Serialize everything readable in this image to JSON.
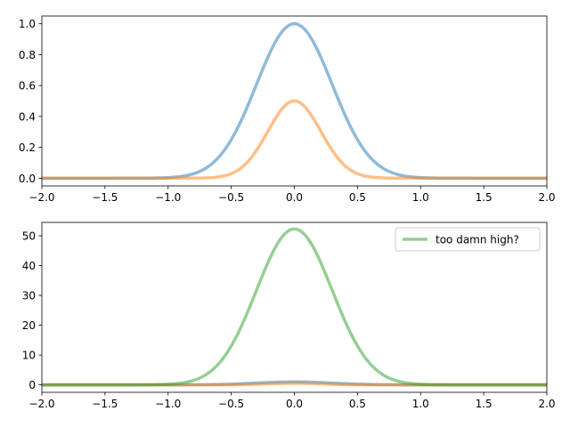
{
  "chart_data": [
    {
      "type": "line",
      "xlim": [
        -2,
        2
      ],
      "ylim": [
        -0.05,
        1.05
      ],
      "xticks": [
        -2.0,
        -1.5,
        -1.0,
        -0.5,
        0.0,
        0.5,
        1.0,
        1.5,
        2.0
      ],
      "xtick_labels": [
        "−2.0",
        "−1.5",
        "−1.0",
        "−0.5",
        "0.0",
        "0.5",
        "1.0",
        "1.5",
        "2.0"
      ],
      "yticks": [
        0.0,
        0.2,
        0.4,
        0.6,
        0.8,
        1.0
      ],
      "ytick_labels": [
        "0.0",
        "0.2",
        "0.4",
        "0.6",
        "0.8",
        "1.0"
      ],
      "grid": false,
      "series": [
        {
          "color": "#1f77b4",
          "alpha": 0.5,
          "amplitude": 1.0,
          "sigma": 0.3,
          "peak": [
            0,
            1.0
          ]
        },
        {
          "color": "#ff7f0e",
          "alpha": 0.5,
          "amplitude": 0.5,
          "sigma": 0.21,
          "peak": [
            0,
            0.5
          ]
        }
      ]
    },
    {
      "type": "line",
      "xlim": [
        -2,
        2
      ],
      "ylim": [
        -2.5,
        54.5
      ],
      "xticks": [
        -2.0,
        -1.5,
        -1.0,
        -0.5,
        0.0,
        0.5,
        1.0,
        1.5,
        2.0
      ],
      "xtick_labels": [
        "−2.0",
        "−1.5",
        "−1.0",
        "−0.5",
        "0.0",
        "0.5",
        "1.0",
        "1.5",
        "2.0"
      ],
      "yticks": [
        0,
        10,
        20,
        30,
        40,
        50
      ],
      "ytick_labels": [
        "0",
        "10",
        "20",
        "30",
        "40",
        "50"
      ],
      "grid": false,
      "legend_placement": "upper right",
      "series": [
        {
          "color": "#1f77b4",
          "alpha": 0.5,
          "amplitude": 1.0,
          "sigma": 0.3,
          "peak": [
            0,
            1.0
          ]
        },
        {
          "color": "#ff7f0e",
          "alpha": 0.5,
          "amplitude": 0.5,
          "sigma": 0.21,
          "peak": [
            0,
            0.5
          ]
        },
        {
          "name": "too damn high?",
          "color": "#2ca02c",
          "alpha": 0.5,
          "amplitude": 52.3,
          "sigma": 0.3,
          "peak": [
            0,
            52.3
          ]
        }
      ]
    }
  ]
}
